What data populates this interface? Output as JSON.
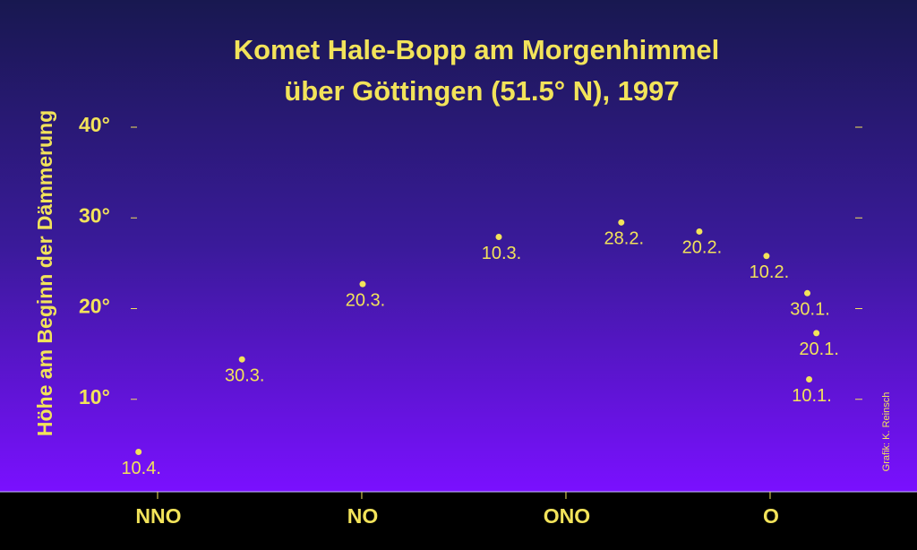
{
  "chart_data": {
    "type": "scatter",
    "title": [
      "Komet Hale-Bopp am Morgenhimmel",
      "über Göttingen (51.5° N), 1997"
    ],
    "ylabel": "Höhe am Beginn der Dämmerung",
    "credit": "Grafik: K. Reinsch",
    "color": "#f2e35a",
    "series": [
      {
        "labels": [
          "10.4.",
          "30.3.",
          "20.3.",
          "10.3.",
          "28.2.",
          "20.2.",
          "10.2.",
          "30.1.",
          "20.1.",
          "10.1."
        ],
        "x": [
          20.4,
          31.8,
          45.1,
          60.1,
          73.6,
          82.2,
          89.6,
          94.1,
          95.1,
          94.3
        ],
        "values": [
          4.1,
          14.3,
          22.6,
          27.8,
          29.4,
          28.4,
          25.7,
          21.6,
          17.2,
          12.1
        ]
      }
    ],
    "xlim": [
      10,
      100
    ],
    "xticks": [
      {
        "value": 22.5,
        "label": "NNO"
      },
      {
        "value": 45,
        "label": "NO"
      },
      {
        "value": 67.5,
        "label": "ONO"
      },
      {
        "value": 90,
        "label": "O"
      }
    ],
    "ylim": [
      0,
      40
    ],
    "yticks": [
      {
        "value": 10,
        "label": "10°"
      },
      {
        "value": 20,
        "label": "20°"
      },
      {
        "value": 30,
        "label": "30°"
      },
      {
        "value": 40,
        "label": "40°"
      }
    ]
  }
}
